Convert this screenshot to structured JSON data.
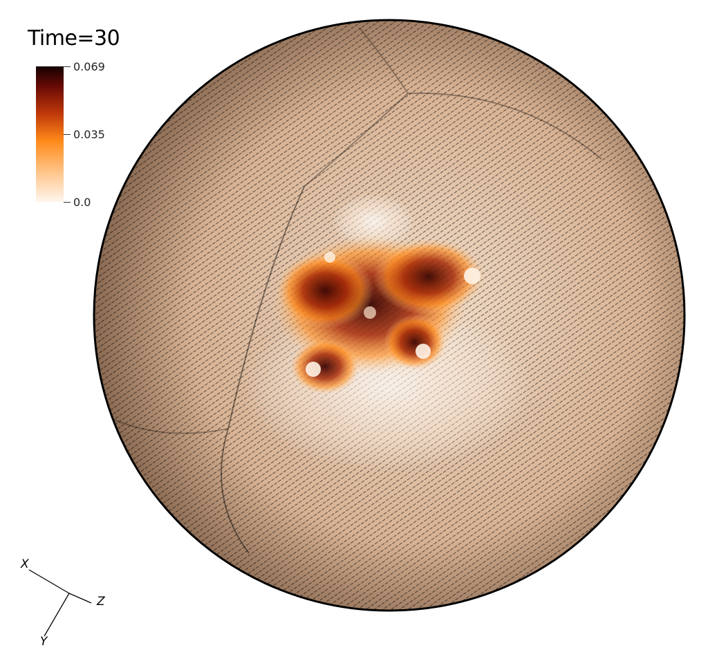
{
  "overlay": {
    "time_label": "Time=30"
  },
  "colorbar": {
    "max_label": "0.069",
    "mid_label": "0.035",
    "min_label": "0.0",
    "colors": [
      "#fff6ee",
      "#ffc58a",
      "#ff8a1a",
      "#c0390a",
      "#6a0a05",
      "#140202"
    ]
  },
  "orientation_axes": {
    "x_label": "X",
    "y_label": "Y",
    "z_label": "Z"
  },
  "sphere": {
    "base_color": "#d9b79a",
    "glyph_color": "#000000",
    "vortex_count": 5
  }
}
